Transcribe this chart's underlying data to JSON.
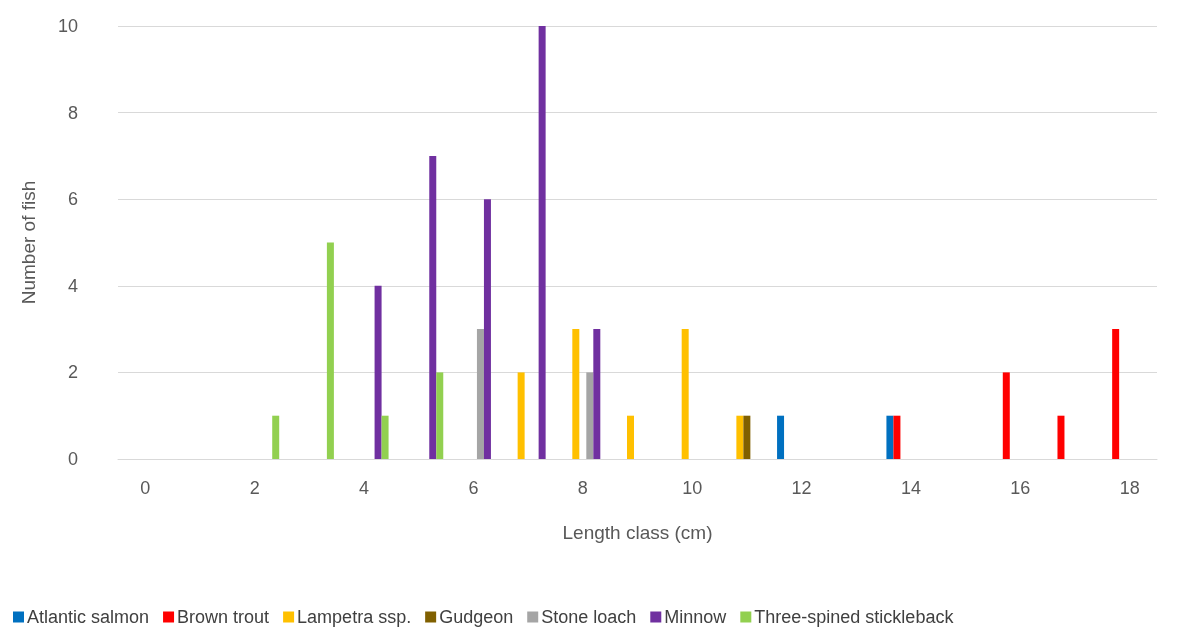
{
  "chart_data": {
    "type": "bar",
    "xlabel": "Length class (cm)",
    "ylabel": "Number of fish",
    "categories": [
      "0",
      null,
      "2",
      null,
      "4",
      null,
      "6",
      null,
      "8",
      null,
      "10",
      null,
      "12",
      null,
      "14",
      null,
      "16",
      null,
      "18"
    ],
    "series": [
      {
        "name": "Atlantic salmon",
        "color": "#0070c0",
        "values": [
          null,
          null,
          null,
          null,
          null,
          null,
          null,
          null,
          null,
          null,
          null,
          null,
          1,
          null,
          1,
          null,
          null,
          null,
          null
        ]
      },
      {
        "name": "Brown trout",
        "color": "#ff0000",
        "values": [
          null,
          null,
          null,
          null,
          null,
          null,
          null,
          null,
          null,
          null,
          null,
          null,
          null,
          null,
          1,
          null,
          2,
          1,
          3
        ]
      },
      {
        "name": "Lampetra ssp.",
        "color": "#ffc000",
        "values": [
          null,
          null,
          null,
          null,
          null,
          null,
          null,
          2,
          3,
          1,
          3,
          1,
          null,
          null,
          null,
          null,
          null,
          null,
          null
        ]
      },
      {
        "name": "Gudgeon",
        "color": "#806000",
        "values": [
          null,
          null,
          null,
          null,
          null,
          null,
          null,
          null,
          null,
          null,
          null,
          1,
          null,
          null,
          null,
          null,
          null,
          null,
          null
        ]
      },
      {
        "name": "Stone loach",
        "color": "#a5a5a5",
        "values": [
          null,
          null,
          null,
          null,
          null,
          null,
          3,
          null,
          2,
          null,
          null,
          null,
          null,
          null,
          null,
          null,
          null,
          null,
          null
        ]
      },
      {
        "name": "Minnow",
        "color": "#7030a0",
        "values": [
          null,
          null,
          null,
          null,
          4,
          7,
          6,
          10,
          3,
          null,
          null,
          null,
          null,
          null,
          null,
          null,
          null,
          null,
          null
        ]
      },
      {
        "name": "Three-spined stickleback",
        "color": "#92d050",
        "values": [
          null,
          null,
          1,
          5,
          1,
          2,
          null,
          null,
          null,
          null,
          null,
          null,
          null,
          null,
          null,
          null,
          null,
          null,
          null
        ]
      }
    ],
    "ylim": [
      0,
      10
    ],
    "yticks": [
      0,
      2,
      4,
      6,
      8,
      10
    ],
    "grid": "y",
    "legend": "bottom"
  }
}
